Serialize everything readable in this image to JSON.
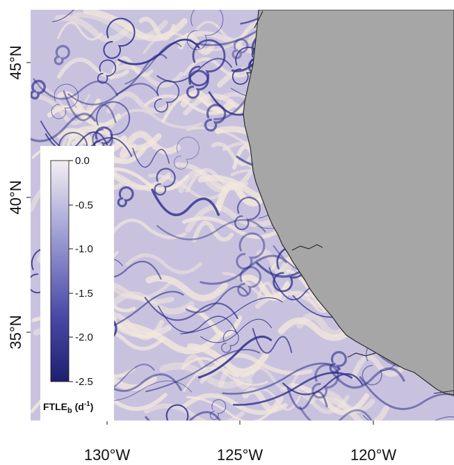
{
  "map": {
    "latitude_labels": [
      "45°N",
      "40°N",
      "35°N"
    ],
    "longitude_labels": [
      "130°W",
      "125°W",
      "120°W"
    ],
    "land_color": "#a6a6a6",
    "ocean_light_color": "#f1e7dc",
    "ridge_color": "#2e2f8a"
  },
  "colorbar": {
    "ticks": [
      "0.0",
      "-0.5",
      "-1.0",
      "-1.5",
      "-2.0",
      "-2.5"
    ],
    "title_main": "FTLE",
    "title_sub": "b",
    "title_unit_open": " (d",
    "title_unit_exp": "-1",
    "title_unit_close": ")",
    "color_top": "#f4eef2",
    "color_bottom": "#1d1f6e"
  }
}
